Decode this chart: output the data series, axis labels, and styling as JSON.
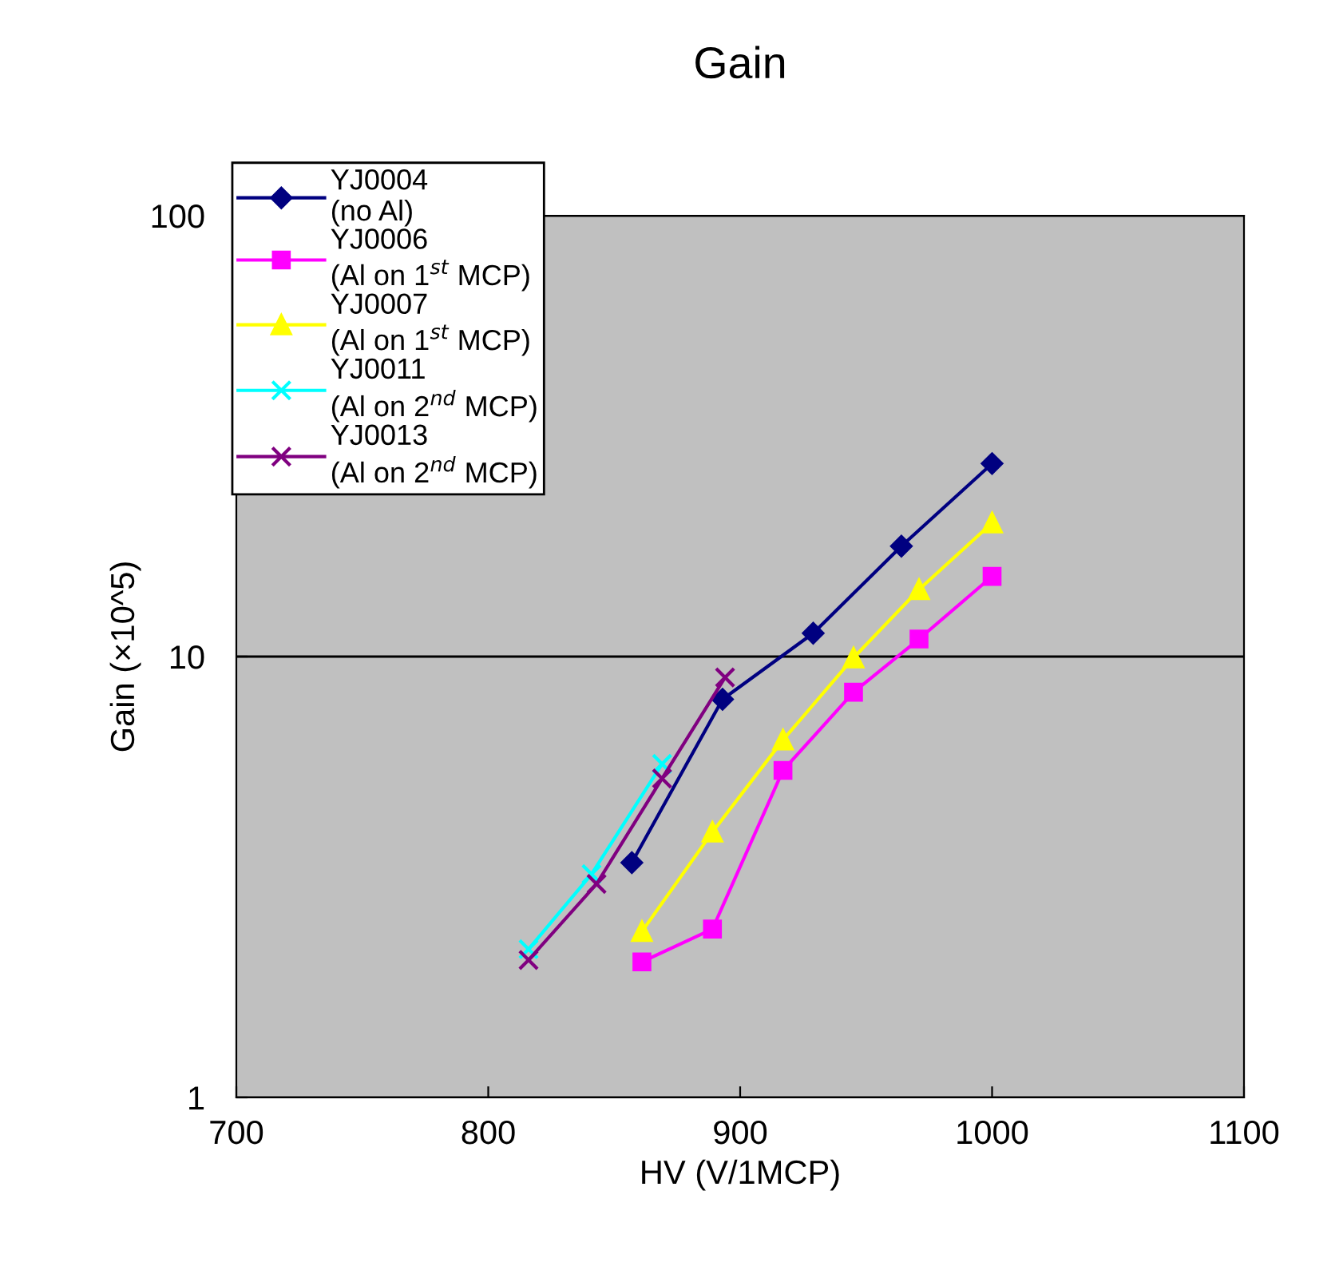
{
  "chart_data": {
    "type": "line",
    "title": "Gain",
    "xlabel": "HV (V/1MCP)",
    "ylabel": "Gain (×10^5)",
    "log": "y",
    "xlim": [
      700,
      1100
    ],
    "xticks": [
      700,
      800,
      900,
      1000,
      1100
    ],
    "ylim": [
      1,
      100
    ],
    "yticks": [
      1,
      10,
      100
    ],
    "grid": "y",
    "legend": "top left",
    "series": [
      {
        "name": "YJ0004\n(no Al)",
        "color": "#000080",
        "marker": "diamond",
        "x": [
          857,
          893,
          929,
          964,
          1000
        ],
        "values": [
          3.41,
          8.0,
          11.3,
          17.8,
          27.4
        ]
      },
      {
        "name": "YJ0006\n(Al on 1$^{st}$ MCP)",
        "color": "#ff00ff",
        "marker": "square",
        "x": [
          861,
          889,
          917,
          945,
          971,
          1000
        ],
        "values": [
          2.03,
          2.41,
          5.52,
          8.3,
          10.96,
          15.2
        ]
      },
      {
        "name": "YJ0007\n(Al on 1$^{st}$ MCP)",
        "color": "#ffff00",
        "marker": "triangle",
        "x": [
          861,
          889,
          917,
          945,
          971,
          1000
        ],
        "values": [
          2.38,
          4.0,
          6.47,
          9.94,
          14.2,
          20.1
        ]
      },
      {
        "name": "YJ0011\n(Al on 2$^{nd}$ MCP)",
        "color": "#00ffff",
        "marker": "cross",
        "x": [
          816,
          841,
          869
        ],
        "values": [
          2.17,
          3.21,
          5.71
        ]
      },
      {
        "name": "YJ0013\n(Al on 2$^{nd}$ MCP)",
        "color": "#800080",
        "marker": "cross",
        "x": [
          816,
          843,
          869,
          894
        ],
        "values": [
          2.05,
          3.05,
          5.29,
          8.97
        ]
      }
    ]
  }
}
